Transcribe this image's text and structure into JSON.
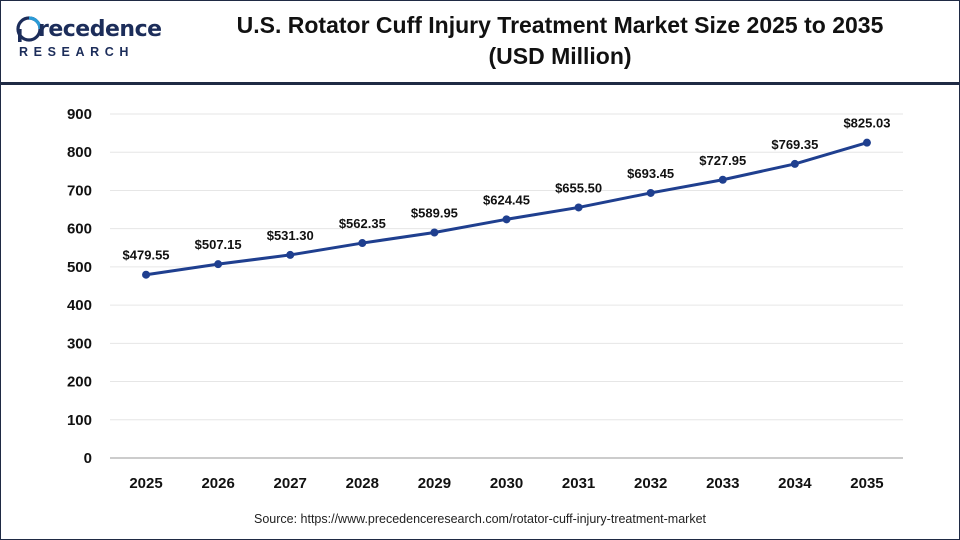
{
  "brand": {
    "name_initial": "P",
    "name_rest": "recedence",
    "sub": "RESEARCH",
    "primary_color": "#1c2d5a",
    "accent_color": "#2a9bd7"
  },
  "title_line1": "U.S. Rotator Cuff Injury Treatment Market Size 2025 to 2035",
  "title_line2": "(USD Million)",
  "source": "Source: https://www.precedenceresearch.com/rotator-cuff-injury-treatment-market",
  "chart_data": {
    "type": "line",
    "title": "U.S. Rotator Cuff Injury Treatment Market Size 2025 to 2035 (USD Million)",
    "xlabel": "",
    "ylabel": "",
    "categories": [
      "2025",
      "2026",
      "2027",
      "2028",
      "2029",
      "2030",
      "2031",
      "2032",
      "2033",
      "2034",
      "2035"
    ],
    "series": [
      {
        "values": [
          479.55,
          507.15,
          531.3,
          562.35,
          589.95,
          624.45,
          655.5,
          693.45,
          727.95,
          769.35,
          825.03
        ],
        "labels": [
          "$479.55",
          "$507.15",
          "$531.30",
          "$562.35",
          "$589.95",
          "$624.45",
          "$655.50",
          "$693.45",
          "$727.95",
          "$769.35",
          "$825.03"
        ],
        "color": "#1f3f8f"
      }
    ],
    "ylim": [
      0,
      900
    ],
    "yticks": [
      "0",
      "100",
      "200",
      "300",
      "400",
      "500",
      "600",
      "700",
      "800",
      "900"
    ],
    "grid": true,
    "legend": "none"
  }
}
